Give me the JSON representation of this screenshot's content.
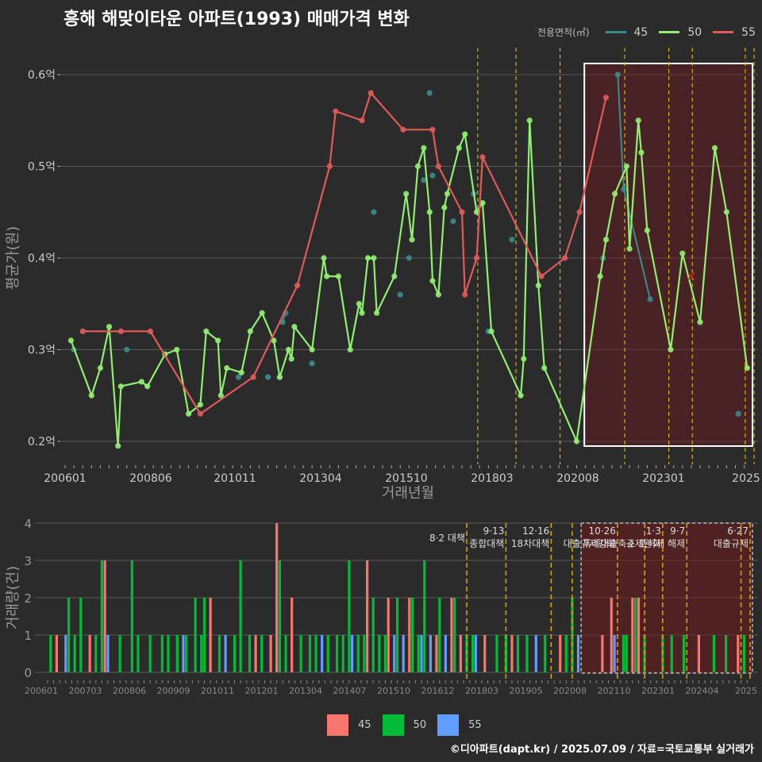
{
  "title": "흥해 해맞이타운 아파트(1993) 매매가격 변화",
  "footer": "©디아파트(dapt.kr) / 2025.07.09 / 자료=국토교통부 실거래가",
  "legend_top": {
    "label": "전용면적(㎡)",
    "items": [
      {
        "name": "45",
        "color": "#3a8c8c"
      },
      {
        "name": "50",
        "color": "#90ee70"
      },
      {
        "name": "55",
        "color": "#e05a5a"
      }
    ]
  },
  "legend_bottom": {
    "items": [
      {
        "name": "45",
        "color": "#f8766d"
      },
      {
        "name": "50",
        "color": "#00ba38"
      },
      {
        "name": "55",
        "color": "#619cff"
      }
    ]
  },
  "chart_data": [
    {
      "type": "line",
      "title": "흥해 해맞이타운 아파트(1993) 매매가격 변화",
      "xlabel": "거래년월",
      "ylabel": "평균가(원)",
      "x_range": [
        "2006-01",
        "2025-06"
      ],
      "ylim": [
        0.18,
        0.63
      ],
      "y_ticks": [
        0.2,
        0.3,
        0.4,
        0.5,
        0.6
      ],
      "y_tick_labels": [
        "0.2억",
        "0.3억",
        "0.4억",
        "0.5억",
        "0.6억"
      ],
      "x_tick_labels": [
        "200601",
        "200806",
        "201011",
        "201304",
        "201510",
        "201803",
        "202008",
        "202301",
        "2025"
      ],
      "series": [
        {
          "name": "45",
          "color": "#3a8c8c",
          "points": [
            [
              "2006-04",
              0.3
            ],
            [
              "2007-10",
              0.3
            ],
            [
              "2010-12",
              0.27
            ],
            [
              "2011-10",
              0.27
            ],
            [
              "2012-02",
              0.27
            ],
            [
              "2012-03",
              0.33
            ],
            [
              "2012-04",
              0.34
            ],
            [
              "2013-01",
              0.285
            ],
            [
              "2014-10",
              0.45
            ],
            [
              "2015-07",
              0.36
            ],
            [
              "2015-10",
              0.4
            ],
            [
              "2016-03",
              0.485
            ],
            [
              "2016-05",
              0.58
            ],
            [
              "2016-06",
              0.49
            ],
            [
              "2017-01",
              0.44
            ],
            [
              "2017-08",
              0.47
            ],
            [
              "2018-01",
              0.32
            ],
            [
              "2018-09",
              0.42
            ],
            [
              "2021-04",
              0.4
            ],
            [
              "2021-09",
              0.6
            ],
            [
              "2021-11",
              0.475
            ],
            [
              "2022-08",
              0.355
            ],
            [
              "2025-02",
              0.23
            ]
          ]
        },
        {
          "name": "50",
          "color": "#90ee70",
          "points": [
            [
              "2006-03",
              0.31
            ],
            [
              "2006-10",
              0.25
            ],
            [
              "2007-01",
              0.28
            ],
            [
              "2007-04",
              0.325
            ],
            [
              "2007-07",
              0.195
            ],
            [
              "2007-08",
              0.26
            ],
            [
              "2008-03",
              0.265
            ],
            [
              "2008-05",
              0.26
            ],
            [
              "2008-11",
              0.295
            ],
            [
              "2009-03",
              0.3
            ],
            [
              "2009-07",
              0.23
            ],
            [
              "2009-11",
              0.24
            ],
            [
              "2010-01",
              0.32
            ],
            [
              "2010-05",
              0.31
            ],
            [
              "2010-06",
              0.25
            ],
            [
              "2010-08",
              0.28
            ],
            [
              "2011-01",
              0.275
            ],
            [
              "2011-04",
              0.32
            ],
            [
              "2011-08",
              0.34
            ],
            [
              "2011-12",
              0.31
            ],
            [
              "2012-02",
              0.27
            ],
            [
              "2012-05",
              0.3
            ],
            [
              "2012-06",
              0.29
            ],
            [
              "2012-07",
              0.325
            ],
            [
              "2013-01",
              0.3
            ],
            [
              "2013-05",
              0.4
            ],
            [
              "2013-06",
              0.38
            ],
            [
              "2013-10",
              0.38
            ],
            [
              "2014-02",
              0.3
            ],
            [
              "2014-05",
              0.35
            ],
            [
              "2014-06",
              0.34
            ],
            [
              "2014-08",
              0.4
            ],
            [
              "2014-10",
              0.4
            ],
            [
              "2014-11",
              0.34
            ],
            [
              "2015-05",
              0.38
            ],
            [
              "2015-09",
              0.47
            ],
            [
              "2015-11",
              0.42
            ],
            [
              "2016-01",
              0.5
            ],
            [
              "2016-03",
              0.52
            ],
            [
              "2016-05",
              0.45
            ],
            [
              "2016-06",
              0.375
            ],
            [
              "2016-08",
              0.36
            ],
            [
              "2016-10",
              0.455
            ],
            [
              "2016-11",
              0.47
            ],
            [
              "2017-03",
              0.52
            ],
            [
              "2017-05",
              0.535
            ],
            [
              "2017-09",
              0.45
            ],
            [
              "2017-11",
              0.46
            ],
            [
              "2018-02",
              0.32
            ],
            [
              "2018-12",
              0.25
            ],
            [
              "2019-01",
              0.29
            ],
            [
              "2019-03",
              0.55
            ],
            [
              "2019-06",
              0.37
            ],
            [
              "2019-08",
              0.28
            ],
            [
              "2020-07",
              0.2
            ],
            [
              "2021-03",
              0.38
            ],
            [
              "2021-05",
              0.42
            ],
            [
              "2021-08",
              0.47
            ],
            [
              "2021-12",
              0.5
            ],
            [
              "2022-01",
              0.41
            ],
            [
              "2022-04",
              0.55
            ],
            [
              "2022-05",
              0.515
            ],
            [
              "2022-07",
              0.43
            ],
            [
              "2023-03",
              0.3
            ],
            [
              "2023-07",
              0.405
            ],
            [
              "2024-01",
              0.33
            ],
            [
              "2024-06",
              0.52
            ],
            [
              "2024-10",
              0.45
            ],
            [
              "2025-05",
              0.28
            ]
          ]
        },
        {
          "name": "55",
          "color": "#e05a5a",
          "points": [
            [
              "2006-07",
              0.32
            ],
            [
              "2007-08",
              0.32
            ],
            [
              "2008-06",
              0.32
            ],
            [
              "2009-11",
              0.23
            ],
            [
              "2011-05",
              0.27
            ],
            [
              "2012-08",
              0.37
            ],
            [
              "2013-07",
              0.5
            ],
            [
              "2013-09",
              0.56
            ],
            [
              "2014-06",
              0.55
            ],
            [
              "2014-09",
              0.58
            ],
            [
              "2015-08",
              0.54
            ],
            [
              "2016-06",
              0.54
            ],
            [
              "2016-08",
              0.5
            ],
            [
              "2017-04",
              0.45
            ],
            [
              "2017-05",
              0.36
            ],
            [
              "2017-09",
              0.4
            ],
            [
              "2017-11",
              0.51
            ],
            [
              "2019-07",
              0.38
            ],
            [
              "2020-03",
              0.4
            ],
            [
              "2020-08",
              0.45
            ],
            [
              "2021-05",
              0.575
            ]
          ]
        }
      ],
      "highlight_range": [
        "2020-08",
        "2025-06"
      ],
      "markers": [
        [
          "2023-10",
          0.38
        ]
      ]
    },
    {
      "type": "bar",
      "ylabel": "거래량(건)",
      "ylim": [
        0,
        4
      ],
      "y_ticks": [
        0,
        1,
        2,
        3,
        4
      ],
      "x_tick_labels": [
        "200601",
        "200703",
        "200806",
        "200909",
        "201011",
        "201201",
        "201304",
        "201407",
        "201510",
        "201612",
        "201803",
        "201905",
        "202008",
        "202110",
        "202301",
        "202404",
        "2025"
      ],
      "series_colors": {
        "45": "#f8766d",
        "50": "#00ba38",
        "55": "#619cff"
      },
      "bars": [
        [
          "2006-02",
          "50",
          1
        ],
        [
          "2006-04",
          "45",
          1
        ],
        [
          "2006-07",
          "55",
          1
        ],
        [
          "2006-08",
          "50",
          2
        ],
        [
          "2006-10",
          "50",
          1
        ],
        [
          "2006-12",
          "50",
          2
        ],
        [
          "2007-03",
          "45",
          1
        ],
        [
          "2007-05",
          "50",
          1
        ],
        [
          "2007-07",
          "50",
          3
        ],
        [
          "2007-08",
          "45",
          3
        ],
        [
          "2007-09",
          "55",
          1
        ],
        [
          "2008-01",
          "50",
          1
        ],
        [
          "2008-05",
          "50",
          3
        ],
        [
          "2008-07",
          "50",
          1
        ],
        [
          "2008-11",
          "50",
          1
        ],
        [
          "2009-03",
          "50",
          1
        ],
        [
          "2009-05",
          "50",
          1
        ],
        [
          "2009-08",
          "50",
          1
        ],
        [
          "2009-10",
          "55",
          1
        ],
        [
          "2009-11",
          "50",
          1
        ],
        [
          "2010-02",
          "50",
          2
        ],
        [
          "2010-04",
          "50",
          1
        ],
        [
          "2010-05",
          "50",
          2
        ],
        [
          "2010-07",
          "45",
          2
        ],
        [
          "2010-10",
          "50",
          1
        ],
        [
          "2010-12",
          "55",
          1
        ],
        [
          "2011-03",
          "50",
          1
        ],
        [
          "2011-05",
          "50",
          3
        ],
        [
          "2011-08",
          "50",
          1
        ],
        [
          "2011-10",
          "45",
          1
        ],
        [
          "2011-12",
          "50",
          1
        ],
        [
          "2012-03",
          "45",
          1
        ],
        [
          "2012-05",
          "45",
          4
        ],
        [
          "2012-06",
          "50",
          3
        ],
        [
          "2012-08",
          "50",
          1
        ],
        [
          "2012-10",
          "45",
          2
        ],
        [
          "2013-01",
          "50",
          1
        ],
        [
          "2013-04",
          "50",
          1
        ],
        [
          "2013-06",
          "50",
          1
        ],
        [
          "2013-08",
          "55",
          1
        ],
        [
          "2013-10",
          "50",
          1
        ],
        [
          "2014-01",
          "50",
          1
        ],
        [
          "2014-03",
          "50",
          1
        ],
        [
          "2014-05",
          "50",
          3
        ],
        [
          "2014-06",
          "55",
          1
        ],
        [
          "2014-08",
          "50",
          1
        ],
        [
          "2014-10",
          "50",
          1
        ],
        [
          "2014-11",
          "45",
          3
        ],
        [
          "2015-01",
          "50",
          2
        ],
        [
          "2015-03",
          "50",
          1
        ],
        [
          "2015-05",
          "50",
          1
        ],
        [
          "2015-06",
          "45",
          2
        ],
        [
          "2015-08",
          "55",
          1
        ],
        [
          "2015-09",
          "50",
          2
        ],
        [
          "2015-11",
          "55",
          1
        ],
        [
          "2016-01",
          "45",
          2
        ],
        [
          "2016-02",
          "50",
          2
        ],
        [
          "2016-04",
          "50",
          1
        ],
        [
          "2016-05",
          "55",
          1
        ],
        [
          "2016-06",
          "50",
          3
        ],
        [
          "2016-08",
          "55",
          1
        ],
        [
          "2016-10",
          "45",
          1
        ],
        [
          "2016-11",
          "50",
          2
        ],
        [
          "2017-01",
          "55",
          1
        ],
        [
          "2017-03",
          "45",
          2
        ],
        [
          "2017-04",
          "50",
          2
        ],
        [
          "2017-06",
          "45",
          1
        ],
        [
          "2017-08",
          "50",
          1
        ],
        [
          "2017-10",
          "50",
          1
        ],
        [
          "2017-11",
          "55",
          1
        ],
        [
          "2018-02",
          "45",
          1
        ],
        [
          "2018-06",
          "50",
          1
        ],
        [
          "2018-09",
          "50",
          1
        ],
        [
          "2018-11",
          "45",
          1
        ],
        [
          "2019-01",
          "50",
          1
        ],
        [
          "2019-04",
          "50",
          1
        ],
        [
          "2019-07",
          "55",
          1
        ],
        [
          "2019-10",
          "50",
          1
        ],
        [
          "2020-03",
          "45",
          1
        ],
        [
          "2020-05",
          "50",
          1
        ],
        [
          "2020-07",
          "50",
          2
        ],
        [
          "2020-09",
          "55",
          1
        ],
        [
          "2021-05",
          "45",
          1
        ],
        [
          "2021-08",
          "45",
          2
        ],
        [
          "2021-09",
          "55",
          1
        ],
        [
          "2021-12",
          "50",
          1
        ],
        [
          "2022-01",
          "50",
          1
        ],
        [
          "2022-03",
          "45",
          2
        ],
        [
          "2022-04",
          "50",
          2
        ],
        [
          "2022-05",
          "45",
          2
        ],
        [
          "2022-07",
          "50",
          1
        ],
        [
          "2023-01",
          "50",
          1
        ],
        [
          "2023-04",
          "50",
          1
        ],
        [
          "2023-08",
          "50",
          1
        ],
        [
          "2024-01",
          "45",
          1
        ],
        [
          "2024-06",
          "50",
          1
        ],
        [
          "2024-10",
          "50",
          1
        ],
        [
          "2025-02",
          "45",
          1
        ],
        [
          "2025-04",
          "50",
          1
        ]
      ],
      "events": [
        {
          "date": "2017-08",
          "label": "8·2 대책"
        },
        {
          "date": "2018-09",
          "label": "9·13\n종합대책"
        },
        {
          "date": "2019-12",
          "label": "12·16\n18차대책"
        },
        {
          "date": "2020-07",
          "label": ""
        },
        {
          "date": "2021-10",
          "label": "10·26\n대출규제강화"
        },
        {
          "date": "2022-07",
          "label": ""
        },
        {
          "date": "2023-01",
          "label": "1·3\n규제완화"
        },
        {
          "date": "2023-09",
          "label": "9·7\n특례대출축소 토허제 해제"
        },
        {
          "date": "2025-03",
          "label": ""
        },
        {
          "date": "2025-06",
          "label": "6·27\n대출규제"
        }
      ]
    }
  ]
}
